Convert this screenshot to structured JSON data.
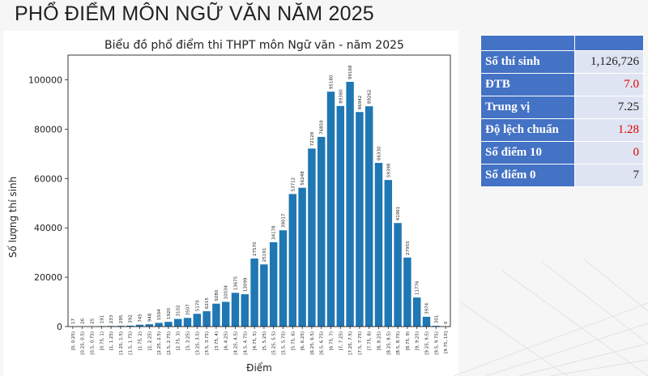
{
  "page_title": "PHỔ ĐIỂM MÔN NGỮ VĂN NĂM 2025",
  "stats": [
    {
      "label": "Số thí sinh",
      "value": "1,126,726",
      "color": "#222222"
    },
    {
      "label": "ĐTB",
      "value": "7.0",
      "color": "#e00000"
    },
    {
      "label": "Trung vị",
      "value": "7.25",
      "color": "#222222"
    },
    {
      "label": "Độ lệch chuẩn",
      "value": "1.28",
      "color": "#e00000"
    },
    {
      "label": "Số điểm 10",
      "value": "0",
      "color": "#e00000"
    },
    {
      "label": "Số điểm 0",
      "value": "7",
      "color": "#222222"
    }
  ],
  "chart_data": {
    "type": "bar",
    "title": "Biểu đồ phổ điểm thi THPT môn Ngữ văn - năm 2025",
    "xlabel": "Điểm",
    "ylabel": "Số lượng thí sinh",
    "ylim": [
      0,
      110000
    ],
    "yticks": [
      0,
      20000,
      40000,
      60000,
      80000,
      100000
    ],
    "bar_color": "#1f77b4",
    "grid": false,
    "categories": [
      "[0, 0.25)",
      "[0.25, 0.5)",
      "[0.5, 0.75)",
      "[0.75, 1)",
      "[1, 1.25)",
      "[1.25, 1.5)",
      "[1.5, 1.75)",
      "[1.75, 2)",
      "[2, 2.25)",
      "[2.25, 2.5)",
      "[2.5, 2.75)",
      "[2.75, 3)",
      "[3, 3.25)",
      "[3.25, 3.5)",
      "[3.5, 3.75)",
      "[3.75, 4)",
      "[4, 4.25)",
      "[4.25, 4.5)",
      "[4.5, 4.75)",
      "[4.75, 5)",
      "[5, 5.25)",
      "[5.25, 5.5)",
      "[5.5, 5.75)",
      "[5.75, 6)",
      "[6, 6.25)",
      "[6.25, 6.5)",
      "[6.5, 6.75)",
      "[6.75, 7)",
      "[7, 7.25)",
      "[7.25, 7.5)",
      "[7.5, 7.75)",
      "[7.75, 8)",
      "[8, 8.25)",
      "[8.25, 8.5)",
      "[8.5, 8.75)",
      "[8.75, 9)",
      "[9, 9.25)",
      "[9.25, 9.5)",
      "[9.5, 9.75)",
      "[9.75, 10]"
    ],
    "values": [
      17,
      26,
      25,
      191,
      233,
      295,
      392,
      745,
      948,
      1504,
      1920,
      3102,
      3507,
      5170,
      6215,
      9280,
      10034,
      13675,
      13099,
      27570,
      25191,
      34178,
      39017,
      53712,
      56248,
      72128,
      76859,
      95180,
      89380,
      99168,
      86942,
      89262,
      66330,
      59398,
      41961,
      27955,
      11776,
      3974,
      301,
      0
    ]
  }
}
